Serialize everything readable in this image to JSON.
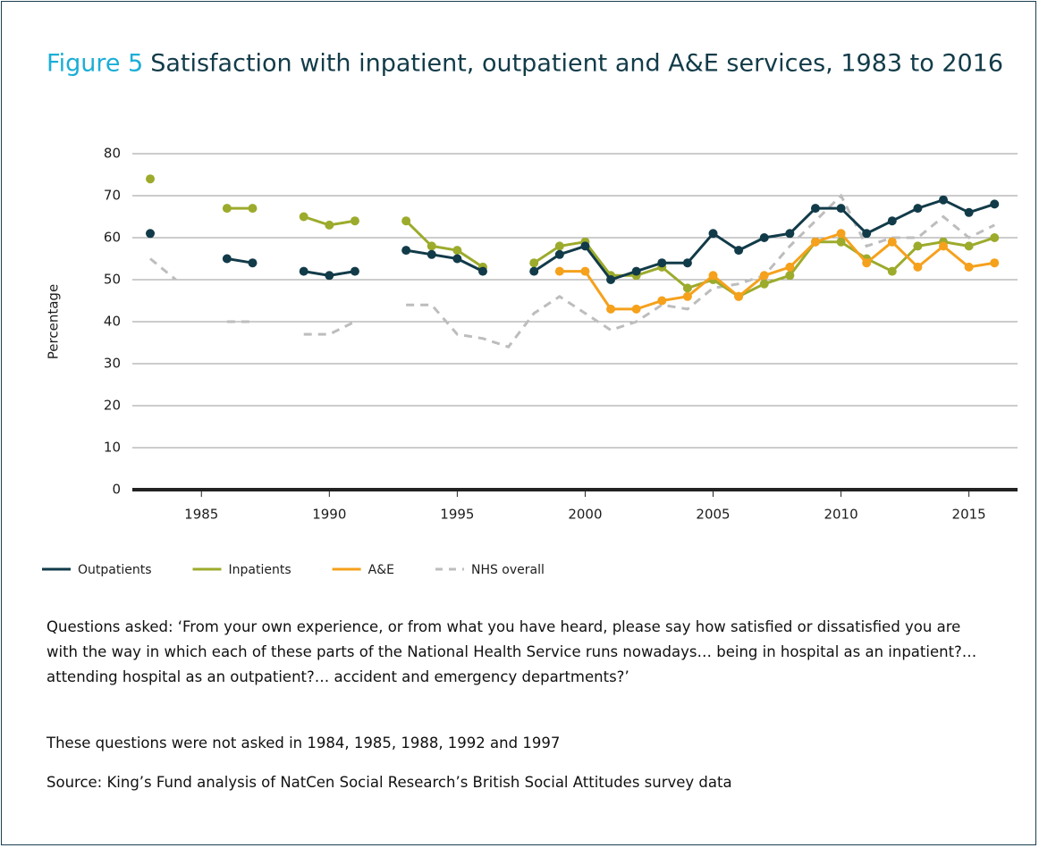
{
  "chart_data": {
    "type": "line",
    "figure_label": "Figure 5",
    "title": "Satisfaction with inpatient, outpatient and A&E services, 1983 to 2016",
    "y_label": "Percentage",
    "x": [
      1983,
      1984,
      1985,
      1986,
      1987,
      1988,
      1989,
      1990,
      1991,
      1992,
      1993,
      1994,
      1995,
      1996,
      1997,
      1998,
      1999,
      2000,
      2001,
      2002,
      2003,
      2004,
      2005,
      2006,
      2007,
      2008,
      2009,
      2010,
      2011,
      2012,
      2013,
      2014,
      2015,
      2016
    ],
    "series": [
      {
        "name": "Outpatients",
        "color": "#123b49",
        "dashed": false,
        "markers": true,
        "values": [
          61,
          null,
          null,
          55,
          54,
          null,
          52,
          51,
          52,
          null,
          57,
          56,
          55,
          52,
          null,
          52,
          56,
          58,
          50,
          52,
          54,
          54,
          61,
          57,
          60,
          61,
          67,
          67,
          61,
          64,
          67,
          69,
          66,
          68
        ]
      },
      {
        "name": "Inpatients",
        "color": "#9cab2c",
        "dashed": false,
        "markers": true,
        "values": [
          74,
          null,
          null,
          67,
          67,
          null,
          65,
          63,
          64,
          null,
          64,
          58,
          57,
          53,
          null,
          54,
          58,
          59,
          51,
          51,
          53,
          48,
          50,
          46,
          49,
          51,
          59,
          59,
          55,
          52,
          58,
          59,
          58,
          60
        ]
      },
      {
        "name": "A&E",
        "color": "#f5a11c",
        "dashed": false,
        "markers": true,
        "values": [
          null,
          null,
          null,
          null,
          null,
          null,
          null,
          null,
          null,
          null,
          null,
          null,
          null,
          null,
          null,
          null,
          52,
          52,
          43,
          43,
          45,
          46,
          51,
          46,
          51,
          53,
          59,
          61,
          54,
          59,
          53,
          58,
          53,
          54
        ]
      },
      {
        "name": "NHS overall",
        "color": "#bdbdbd",
        "dashed": true,
        "markers": false,
        "values": [
          55,
          50,
          null,
          40,
          40,
          null,
          37,
          37,
          40,
          null,
          44,
          44,
          37,
          36,
          34,
          42,
          46,
          42,
          38,
          40,
          44,
          43,
          48,
          49,
          51,
          58,
          64,
          70,
          58,
          60,
          60,
          65,
          60,
          63
        ]
      }
    ],
    "xlim": [
      1982.3,
      2016.9
    ],
    "xticks": [
      1985,
      1990,
      1995,
      2000,
      2005,
      2010,
      2015
    ],
    "ylim": [
      0,
      80
    ],
    "yticks": [
      0,
      10,
      20,
      30,
      40,
      50,
      60,
      70,
      80
    ],
    "grid": true,
    "notes": [
      "Questions asked: ‘From your own experience, or from what you have heard, please say how satisfied or dissatisfied you are with the way in which each of these parts of the National Health Service runs nowadays… being in hospital as an inpatient?… attending hospital as an outpatient?… accident and emergency departments?’",
      "These questions were not asked in 1984, 1985, 1988, 1992 and 1997",
      "Source: King’s Fund analysis of NatCen Social Research’s British Social Attitudes survey data"
    ]
  }
}
